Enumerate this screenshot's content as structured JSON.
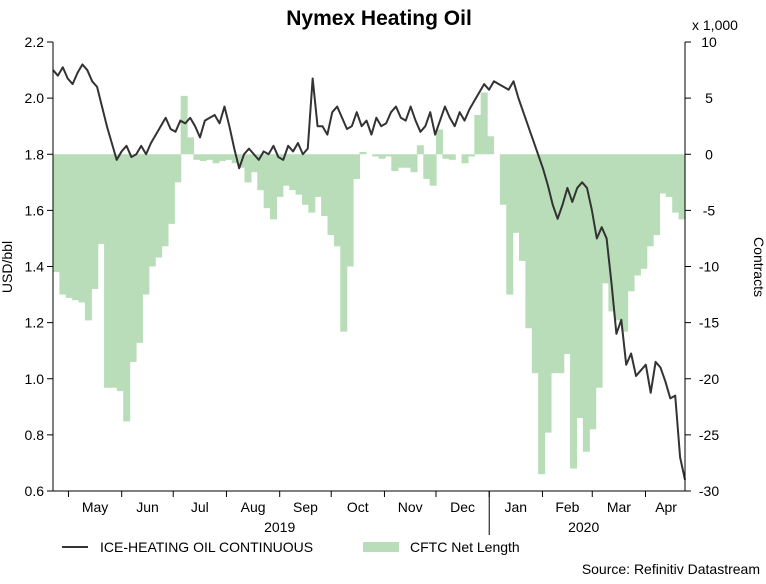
{
  "chart_data": {
    "type": "line+area",
    "title": "Nymex Heating Oil",
    "ylabel_left": "USD/bbl",
    "ylabel_right": "Contracts",
    "right_scale_note": "x 1,000",
    "ylim_left": [
      0.6,
      2.2
    ],
    "ylim_right": [
      -30,
      10
    ],
    "left_ticks": [
      "0.6",
      "0.8",
      "1.0",
      "1.2",
      "1.4",
      "1.6",
      "1.8",
      "2.0",
      "2.2"
    ],
    "right_ticks": [
      "-30",
      "-25",
      "-20",
      "-15",
      "-10",
      "-5",
      "0",
      "5",
      "10"
    ],
    "x_range": [
      "2019-04-22",
      "2020-04-24"
    ],
    "month_labels": [
      "May",
      "Jun",
      "Jul",
      "Aug",
      "Sep",
      "Oct",
      "Nov",
      "Dec",
      "Jan",
      "Feb",
      "Mar",
      "Apr"
    ],
    "year_labels": [
      "2019",
      "2020"
    ],
    "legend": {
      "line": "ICE-HEATING OIL CONTINUOUS",
      "area": "CFTC Net Length"
    },
    "source": "Source: Refinitiv Datastream",
    "colors": {
      "line": "#333333",
      "area": "#b8ddb8",
      "axis": "#000000"
    },
    "series": [
      {
        "name": "ICE-HEATING OIL CONTINUOUS",
        "axis": "left",
        "unit": "USD/bbl",
        "values": [
          2.1,
          2.08,
          2.11,
          2.07,
          2.05,
          2.09,
          2.12,
          2.1,
          2.06,
          2.04,
          1.97,
          1.9,
          1.84,
          1.78,
          1.81,
          1.83,
          1.79,
          1.8,
          1.83,
          1.8,
          1.84,
          1.87,
          1.9,
          1.93,
          1.89,
          1.88,
          1.92,
          1.91,
          1.93,
          1.9,
          1.86,
          1.92,
          1.93,
          1.94,
          1.91,
          1.97,
          1.9,
          1.82,
          1.75,
          1.8,
          1.82,
          1.8,
          1.78,
          1.81,
          1.8,
          1.83,
          1.79,
          1.78,
          1.83,
          1.81,
          1.84,
          1.8,
          1.82,
          2.07,
          1.9,
          1.9,
          1.87,
          1.95,
          1.97,
          1.93,
          1.89,
          1.9,
          1.95,
          1.9,
          1.92,
          1.87,
          1.93,
          1.9,
          1.91,
          1.95,
          1.97,
          1.93,
          1.92,
          1.97,
          1.92,
          1.88,
          1.9,
          1.95,
          1.87,
          1.92,
          1.97,
          1.93,
          1.9,
          1.95,
          1.92,
          1.96,
          1.99,
          2.02,
          2.05,
          2.03,
          2.06,
          2.05,
          2.04,
          2.03,
          2.06,
          2.0,
          1.95,
          1.9,
          1.85,
          1.8,
          1.75,
          1.69,
          1.62,
          1.57,
          1.62,
          1.68,
          1.63,
          1.68,
          1.7,
          1.68,
          1.6,
          1.5,
          1.54,
          1.5,
          1.34,
          1.16,
          1.21,
          1.05,
          1.09,
          1.01,
          1.03,
          1.05,
          0.95,
          1.06,
          1.04,
          0.99,
          0.93,
          0.94,
          0.72,
          0.64
        ]
      },
      {
        "name": "CFTC Net Length",
        "axis": "right",
        "unit": "thousand contracts",
        "values": [
          -10.5,
          -12.5,
          -12.8,
          -13,
          -13.2,
          -14.8,
          -12,
          -8,
          -20.8,
          -20.8,
          -21.1,
          -23.8,
          -18.5,
          -16.8,
          -12.5,
          -10,
          -9.2,
          -8.2,
          -6.2,
          -2.5,
          5.2,
          1.5,
          -0.5,
          -0.6,
          -0.5,
          -0.8,
          -0.6,
          -0.5,
          -0.8,
          -1.2,
          -2.5,
          -1.6,
          -3.2,
          -4.8,
          -5.8,
          -3.8,
          -2.8,
          -3.2,
          -3.6,
          -4.5,
          -5.2,
          -3.8,
          -5.5,
          -7.2,
          -8.2,
          -15.8,
          -10,
          -2.2,
          0.2,
          0,
          -0.2,
          -0.4,
          -0.2,
          -1.5,
          -1.2,
          -1.2,
          -1.6,
          0.8,
          -2.2,
          -2.8,
          2.2,
          -0.4,
          -0.5,
          0,
          -0.8,
          -0.2,
          3.5,
          5.5,
          1.6,
          0,
          -4.5,
          -12.5,
          -7,
          -9.5,
          -15.5,
          -19.5,
          -28.5,
          -24.8,
          -19.5,
          -19.5,
          -17.8,
          -28,
          -23.5,
          -26.5,
          -24.5,
          -20.8,
          -11.5,
          -14,
          -14.8,
          -15.8,
          -12.2,
          -10.8,
          -10.2,
          -8.2,
          -7.2,
          -3.5,
          -3.8,
          -5.2,
          -5.8
        ]
      }
    ]
  }
}
